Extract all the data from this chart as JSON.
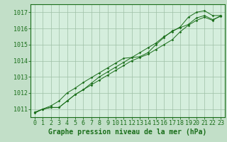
{
  "xlabel": "Graphe pression niveau de la mer (hPa)",
  "x": [
    0,
    1,
    2,
    3,
    4,
    5,
    6,
    7,
    8,
    9,
    10,
    11,
    12,
    13,
    14,
    15,
    16,
    17,
    18,
    19,
    20,
    21,
    22,
    23
  ],
  "line1": [
    1010.8,
    1011.0,
    1011.1,
    1011.1,
    1011.5,
    1011.9,
    1012.2,
    1012.5,
    1012.8,
    1013.1,
    1013.4,
    1013.7,
    1014.0,
    1014.2,
    1014.4,
    1014.7,
    1015.0,
    1015.3,
    1015.8,
    1016.2,
    1016.5,
    1016.7,
    1016.5,
    1016.8
  ],
  "line2": [
    1010.8,
    1011.0,
    1011.2,
    1011.5,
    1012.0,
    1012.3,
    1012.65,
    1012.95,
    1013.25,
    1013.55,
    1013.85,
    1014.15,
    1014.2,
    1014.25,
    1014.5,
    1015.0,
    1015.45,
    1015.85,
    1016.05,
    1016.25,
    1016.65,
    1016.8,
    1016.55,
    1016.75
  ],
  "line3": [
    1010.75,
    1011.0,
    1011.1,
    1011.1,
    1011.5,
    1011.9,
    1012.2,
    1012.6,
    1013.0,
    1013.3,
    1013.6,
    1013.9,
    1014.2,
    1014.5,
    1014.8,
    1015.1,
    1015.5,
    1015.8,
    1016.1,
    1016.7,
    1017.0,
    1017.1,
    1016.8,
    1016.8
  ],
  "line_color": "#1a6e1a",
  "bg_color": "#c2dfc8",
  "plot_bg_color": "#d5eedd",
  "grid_color": "#9dbfa5",
  "ylim_min": 1010.5,
  "ylim_max": 1017.5,
  "yticks": [
    1011,
    1012,
    1013,
    1014,
    1015,
    1016,
    1017
  ],
  "xticks": [
    0,
    1,
    2,
    3,
    4,
    5,
    6,
    7,
    8,
    9,
    10,
    11,
    12,
    13,
    14,
    15,
    16,
    17,
    18,
    19,
    20,
    21,
    22,
    23
  ],
  "label_fontsize": 7.0,
  "tick_fontsize": 6.0
}
